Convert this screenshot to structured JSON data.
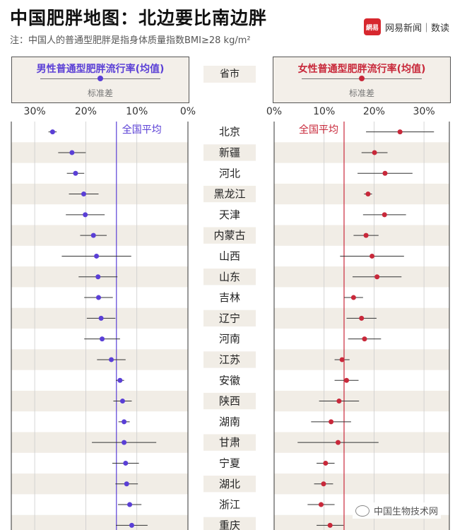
{
  "header": {
    "title": "中国肥胖地图：北边要比南边胖",
    "subtitle": "注：中国人的普通型肥胖是指身体质量指数BMI≥28 kg/m²",
    "brand_logo": "網易",
    "brand_name": "网易新闻｜数读"
  },
  "legend": {
    "male_title": "男性普通型肥胖流行率(均值)",
    "female_title": "女性普通型肥胖流行率(均值)",
    "sd_label": "标准差",
    "province_header": "省市",
    "male_color": "#5a3fd6",
    "female_color": "#c8283a"
  },
  "watermark": "中国生物技术网",
  "chart_data": [
    {
      "type": "scatter",
      "name": "male",
      "title": "男性普通型肥胖流行率(均值)",
      "x_ticks": [
        "30%",
        "20%",
        "10%",
        "0%"
      ],
      "xlim": [
        0,
        33
      ],
      "x_reversed": true,
      "national_average_label": "全国平均",
      "national_average": 14,
      "categories": [
        "北京",
        "新疆",
        "河北",
        "黑龙江",
        "天津",
        "内蒙古",
        "山西",
        "山东",
        "吉林",
        "辽宁",
        "河南",
        "江苏",
        "安徽",
        "陕西",
        "湖南",
        "甘肃",
        "宁夏",
        "湖北",
        "浙江",
        "重庆"
      ],
      "means": [
        26.5,
        22.7,
        22.0,
        20.4,
        20.1,
        18.5,
        17.9,
        17.6,
        17.5,
        17.0,
        16.8,
        15.0,
        13.3,
        12.8,
        12.5,
        12.5,
        12.2,
        12.0,
        11.4,
        11.0
      ],
      "sd": [
        0.8,
        2.7,
        1.7,
        2.9,
        3.8,
        2.6,
        6.8,
        3.8,
        2.8,
        2.8,
        3.5,
        2.8,
        0.8,
        1.8,
        1.1,
        6.3,
        2.6,
        2.2,
        2.3,
        3.1
      ]
    },
    {
      "type": "scatter",
      "name": "female",
      "title": "女性普通型肥胖流行率(均值)",
      "x_ticks": [
        "0%",
        "10%",
        "20%",
        "30%"
      ],
      "xlim": [
        0,
        35
      ],
      "national_average_label": "全国平均",
      "national_average": 14,
      "categories": [
        "北京",
        "新疆",
        "河北",
        "黑龙江",
        "天津",
        "内蒙古",
        "山西",
        "山东",
        "吉林",
        "辽宁",
        "河南",
        "江苏",
        "安徽",
        "陕西",
        "湖南",
        "甘肃",
        "宁夏",
        "湖北",
        "浙江",
        "重庆"
      ],
      "means": [
        25.2,
        20.1,
        22.2,
        18.8,
        22.1,
        18.4,
        19.6,
        20.6,
        15.9,
        17.5,
        18.1,
        13.6,
        14.5,
        13.0,
        11.4,
        12.8,
        10.3,
        9.9,
        9.4,
        11.2
      ],
      "sd": [
        6.8,
        2.6,
        5.5,
        0.8,
        4.3,
        2.5,
        6.4,
        4.9,
        1.9,
        3.0,
        3.3,
        1.5,
        2.4,
        4.0,
        4.0,
        8.1,
        1.8,
        1.9,
        2.7,
        2.7
      ]
    }
  ]
}
